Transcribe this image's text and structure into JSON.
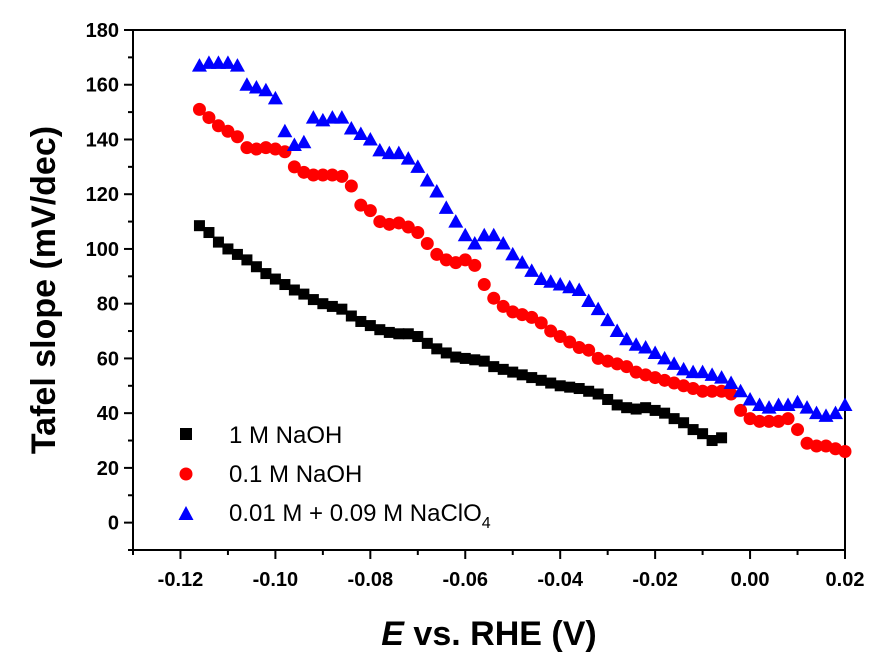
{
  "chart_data": {
    "type": "scatter",
    "xlabel_italic": "E",
    "xlabel_rest": " vs. RHE (V)",
    "ylabel": "Tafel slope (mV/dec)",
    "xlim": [
      -0.13,
      0.02
    ],
    "ylim": [
      -10,
      180
    ],
    "xticks": [
      -0.12,
      -0.1,
      -0.08,
      -0.06,
      -0.04,
      -0.02,
      0.0,
      0.02
    ],
    "xtick_labels": [
      "-0.12",
      "-0.10",
      "-0.08",
      "-0.06",
      "-0.04",
      "-0.02",
      "0.00",
      "0.02"
    ],
    "yticks": [
      0,
      20,
      40,
      60,
      80,
      100,
      120,
      140,
      160,
      180
    ],
    "ytick_labels": [
      "0",
      "20",
      "40",
      "60",
      "80",
      "100",
      "120",
      "140",
      "160",
      "180"
    ],
    "legend_position": "bottom-left",
    "series": [
      {
        "name": "1 M NaOH",
        "marker": "square",
        "color": "#000000",
        "x": [
          -0.116,
          -0.114,
          -0.112,
          -0.11,
          -0.108,
          -0.106,
          -0.104,
          -0.102,
          -0.1,
          -0.098,
          -0.096,
          -0.094,
          -0.092,
          -0.09,
          -0.088,
          -0.086,
          -0.084,
          -0.082,
          -0.08,
          -0.078,
          -0.076,
          -0.074,
          -0.072,
          -0.07,
          -0.068,
          -0.066,
          -0.064,
          -0.062,
          -0.06,
          -0.058,
          -0.056,
          -0.054,
          -0.052,
          -0.05,
          -0.048,
          -0.046,
          -0.044,
          -0.042,
          -0.04,
          -0.038,
          -0.036,
          -0.034,
          -0.032,
          -0.03,
          -0.028,
          -0.026,
          -0.024,
          -0.022,
          -0.02,
          -0.018,
          -0.016,
          -0.014,
          -0.012,
          -0.01,
          -0.008,
          -0.006
        ],
        "y": [
          108.5,
          106,
          102.5,
          100,
          98,
          96,
          93.5,
          91,
          89,
          87,
          85,
          83.5,
          81.5,
          80,
          79,
          78,
          75.5,
          73.5,
          72,
          70.5,
          69.5,
          69,
          69,
          68,
          65.5,
          63.5,
          62,
          60.5,
          60,
          59.5,
          59,
          57,
          56,
          55,
          54,
          53,
          52,
          51,
          50,
          49.5,
          49,
          48,
          47,
          45,
          43,
          42,
          41.5,
          42,
          41,
          40,
          38,
          36.5,
          34,
          32.5,
          30,
          31
        ]
      },
      {
        "name": "0.1 M NaOH",
        "marker": "circle",
        "color": "#ff0000",
        "x": [
          -0.116,
          -0.114,
          -0.112,
          -0.11,
          -0.108,
          -0.106,
          -0.104,
          -0.102,
          -0.1,
          -0.098,
          -0.096,
          -0.094,
          -0.092,
          -0.09,
          -0.088,
          -0.086,
          -0.084,
          -0.082,
          -0.08,
          -0.078,
          -0.076,
          -0.074,
          -0.072,
          -0.07,
          -0.068,
          -0.066,
          -0.064,
          -0.062,
          -0.06,
          -0.058,
          -0.056,
          -0.054,
          -0.052,
          -0.05,
          -0.048,
          -0.046,
          -0.044,
          -0.042,
          -0.04,
          -0.038,
          -0.036,
          -0.034,
          -0.032,
          -0.03,
          -0.028,
          -0.026,
          -0.024,
          -0.022,
          -0.02,
          -0.018,
          -0.016,
          -0.014,
          -0.012,
          -0.01,
          -0.008,
          -0.006,
          -0.004,
          -0.002,
          0.0,
          0.002,
          0.004,
          0.006,
          0.008,
          0.01,
          0.012,
          0.014,
          0.016,
          0.018,
          0.02
        ],
        "y": [
          151,
          148,
          145,
          143,
          141,
          137,
          136.5,
          137,
          136.5,
          135.5,
          130,
          128,
          127,
          127,
          127,
          126.5,
          123,
          116,
          114,
          110,
          109,
          109.5,
          108,
          106,
          102,
          98,
          96,
          95,
          96,
          94,
          87,
          82,
          79,
          77,
          76,
          75,
          73,
          70,
          68,
          66,
          64,
          63,
          60,
          59,
          58,
          57,
          55,
          54,
          53,
          52,
          51,
          50,
          49,
          48,
          48,
          48,
          47,
          41,
          38,
          37,
          37,
          37,
          38,
          34,
          29,
          28,
          28,
          27,
          26
        ]
      },
      {
        "name": "0.01 M + 0.09 M NaClO",
        "name_subscript": "4",
        "marker": "triangle",
        "color": "#0000ff",
        "x": [
          -0.116,
          -0.114,
          -0.112,
          -0.11,
          -0.108,
          -0.106,
          -0.104,
          -0.102,
          -0.1,
          -0.098,
          -0.096,
          -0.094,
          -0.092,
          -0.09,
          -0.088,
          -0.086,
          -0.084,
          -0.082,
          -0.08,
          -0.078,
          -0.076,
          -0.074,
          -0.072,
          -0.07,
          -0.068,
          -0.066,
          -0.064,
          -0.062,
          -0.06,
          -0.058,
          -0.056,
          -0.054,
          -0.052,
          -0.05,
          -0.048,
          -0.046,
          -0.044,
          -0.042,
          -0.04,
          -0.038,
          -0.036,
          -0.034,
          -0.032,
          -0.03,
          -0.028,
          -0.026,
          -0.024,
          -0.022,
          -0.02,
          -0.018,
          -0.016,
          -0.014,
          -0.012,
          -0.01,
          -0.008,
          -0.006,
          -0.004,
          -0.002,
          0.0,
          0.002,
          0.004,
          0.006,
          0.008,
          0.01,
          0.012,
          0.014,
          0.016,
          0.018,
          0.02
        ],
        "y": [
          167,
          168,
          168,
          168,
          167,
          160,
          159,
          158,
          155,
          143,
          138,
          139,
          148,
          147,
          148,
          148,
          144,
          142,
          140,
          136,
          135,
          135,
          133,
          130,
          125,
          121,
          115,
          110,
          105,
          102,
          105,
          105,
          102,
          98,
          95,
          92,
          89,
          88,
          87,
          86,
          85,
          81,
          78,
          74,
          70,
          67,
          65,
          64,
          62,
          60,
          58,
          56,
          55,
          55,
          54,
          53,
          51,
          48,
          45,
          43,
          42,
          43,
          43,
          44,
          42,
          40,
          39,
          40,
          43
        ]
      }
    ]
  }
}
